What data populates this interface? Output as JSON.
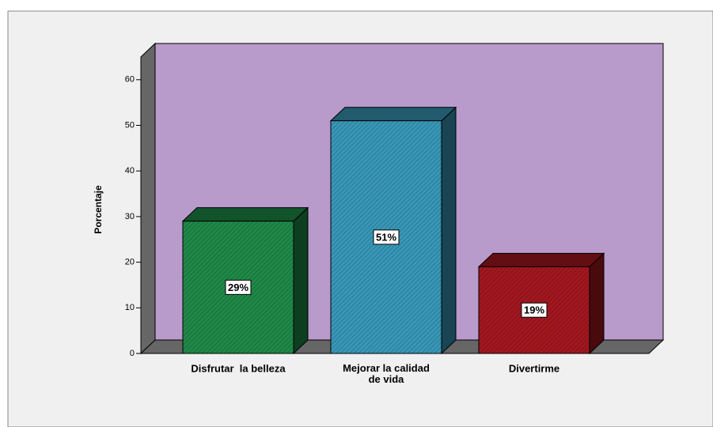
{
  "chart_data": {
    "type": "bar3d",
    "ylabel": "Porcentaje",
    "categories": [
      "Disfrutar  la belleza",
      "Mejorar la calidad de vida",
      "Divertirme"
    ],
    "values": [
      29,
      51,
      19
    ],
    "value_labels": [
      "29%",
      "51%",
      "19%"
    ],
    "colors": [
      "#1f8a48",
      "#3898b8",
      "#a3171f"
    ],
    "wall_color": "#b89acb",
    "ylim": [
      0,
      65
    ],
    "yticks": [
      0,
      10,
      20,
      30,
      40,
      50,
      60
    ]
  }
}
